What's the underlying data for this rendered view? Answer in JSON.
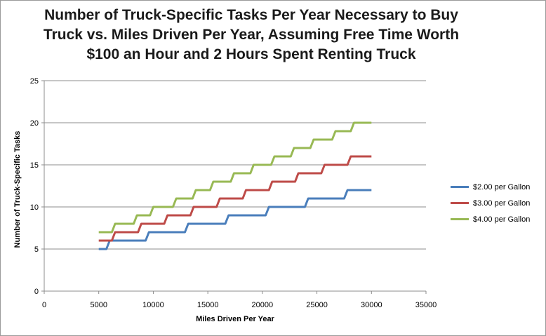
{
  "chart_data": {
    "type": "line",
    "title_lines": [
      "Number of Truck-Specific Tasks Per Year Necessary to Buy",
      "Truck vs. Miles Driven Per Year, Assuming Free Time Worth",
      "$100 an Hour and 2 Hours Spent Renting Truck"
    ],
    "xlabel": "Miles Driven Per Year",
    "ylabel": "Number of Truck-Specific Tasks",
    "xlim": [
      0,
      35000
    ],
    "ylim": [
      0,
      25
    ],
    "xticks": [
      "0",
      "5000",
      "10000",
      "15000",
      "20000",
      "25000",
      "30000",
      "35000"
    ],
    "yticks": [
      "0",
      "5",
      "10",
      "15",
      "20",
      "25"
    ],
    "grid": "horizontal",
    "legend_position": "right",
    "series": [
      {
        "name": "$2.00 per Gallon",
        "color": "#4a7ebb",
        "steps": [
          [
            5000,
            5
          ],
          [
            5700,
            5
          ],
          [
            6000,
            6
          ],
          [
            9300,
            6
          ],
          [
            9600,
            7
          ],
          [
            12900,
            7
          ],
          [
            13200,
            8
          ],
          [
            16600,
            8
          ],
          [
            16900,
            9
          ],
          [
            20300,
            9
          ],
          [
            20600,
            10
          ],
          [
            23900,
            10
          ],
          [
            24200,
            11
          ],
          [
            27500,
            11
          ],
          [
            27800,
            12
          ],
          [
            30000,
            12
          ]
        ]
      },
      {
        "name": "$3.00 per Gallon",
        "color": "#be4b48",
        "steps": [
          [
            5000,
            6
          ],
          [
            6200,
            6
          ],
          [
            6500,
            7
          ],
          [
            8600,
            7
          ],
          [
            8900,
            8
          ],
          [
            11000,
            8
          ],
          [
            11300,
            9
          ],
          [
            13400,
            9
          ],
          [
            13700,
            10
          ],
          [
            15800,
            10
          ],
          [
            16100,
            11
          ],
          [
            18200,
            11
          ],
          [
            18500,
            12
          ],
          [
            20600,
            12
          ],
          [
            20900,
            13
          ],
          [
            23000,
            13
          ],
          [
            23300,
            14
          ],
          [
            25400,
            14
          ],
          [
            25700,
            15
          ],
          [
            27800,
            15
          ],
          [
            28100,
            16
          ],
          [
            30000,
            16
          ]
        ]
      },
      {
        "name": "$4.00 per Gallon",
        "color": "#98b954",
        "steps": [
          [
            5000,
            7
          ],
          [
            6200,
            7
          ],
          [
            6500,
            8
          ],
          [
            8200,
            8
          ],
          [
            8500,
            9
          ],
          [
            9700,
            9
          ],
          [
            10000,
            10
          ],
          [
            11800,
            10
          ],
          [
            12100,
            11
          ],
          [
            13600,
            11
          ],
          [
            13900,
            12
          ],
          [
            15200,
            12
          ],
          [
            15500,
            13
          ],
          [
            17100,
            13
          ],
          [
            17400,
            14
          ],
          [
            18900,
            14
          ],
          [
            19200,
            15
          ],
          [
            20800,
            15
          ],
          [
            21100,
            16
          ],
          [
            22600,
            16
          ],
          [
            22900,
            17
          ],
          [
            24400,
            17
          ],
          [
            24700,
            18
          ],
          [
            26400,
            18
          ],
          [
            26700,
            19
          ],
          [
            28100,
            19
          ],
          [
            28400,
            20
          ],
          [
            30000,
            20
          ]
        ]
      }
    ]
  }
}
